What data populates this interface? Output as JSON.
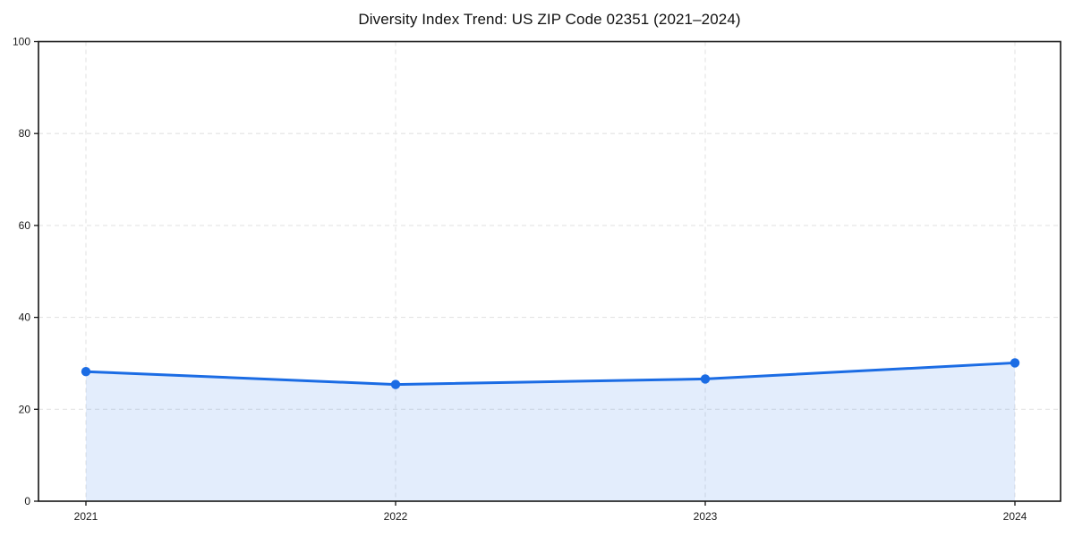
{
  "page": {
    "background": "#ffffff"
  },
  "chart_data": {
    "type": "area",
    "title": "Diversity Index Trend: US ZIP Code 02351 (2021–2024)",
    "categories": [
      "2021",
      "2022",
      "2023",
      "2024"
    ],
    "series": [
      {
        "name": "Diversity Index",
        "values": [
          28.2,
          25.4,
          26.6,
          30.1
        ]
      }
    ],
    "xlabel": "",
    "ylabel": "",
    "ylim": [
      0,
      100
    ],
    "yticks": [
      0,
      20,
      40,
      60,
      80,
      100
    ],
    "grid": "dashed-both-axes",
    "legend": "none",
    "marker": "circle",
    "colors": {
      "line": "#1b6ce4",
      "fill": "#1b6ce4",
      "fill_opacity": 0.12,
      "grid": "#e4e4e4",
      "axis": "#141414",
      "text": "#1a1a1a",
      "background": "#ffffff"
    }
  }
}
